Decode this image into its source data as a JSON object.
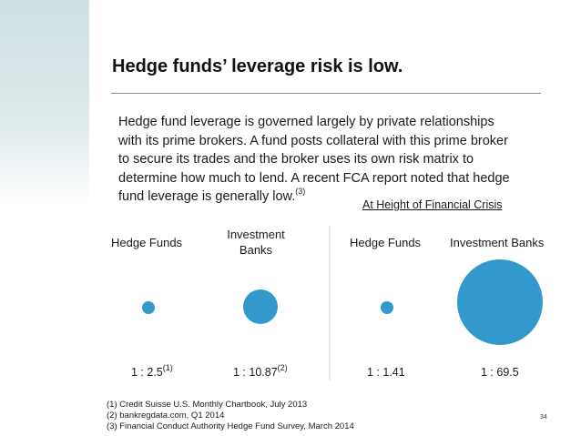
{
  "slide": {
    "title": "Hedge funds’ leverage risk is low.",
    "body_lines": [
      "Hedge fund leverage is governed largely by private relationships",
      "with its prime brokers. A fund posts collateral with this prime broker",
      "to secure its trades and the broker uses its own risk matrix to",
      "determine how much to lend. A recent FCA report noted that hedge",
      "fund leverage is generally low."
    ],
    "body_last_ref": "(3)",
    "crisis_heading": "At Height of Financial Crisis",
    "columns": [
      {
        "label": "Hedge Funds",
        "ratio": "1 : 2.5",
        "ref": "(1)",
        "leverage": 2.5
      },
      {
        "label": "Investment Banks",
        "ratio": "1 : 10.87",
        "ref": "(2)",
        "leverage": 10.87
      },
      {
        "label": "Hedge Funds",
        "ratio": "1 : 1.41",
        "ref": "",
        "leverage": 1.41
      },
      {
        "label": "Investment Banks",
        "ratio": "1 : 69.5",
        "ref": "",
        "leverage": 69.5
      }
    ],
    "footnotes": [
      "(1)  Credit Suisse U.S. Monthly Chartbook, July 2013",
      "(2)  bankregdata.com, Q1 2014",
      "(3)  Financial Conduct Authority Hedge Fund Survey, March 2014"
    ],
    "page_number": "34",
    "colors": {
      "bubble": "#3399cc",
      "accent_strip": "#cfe0e3"
    }
  }
}
